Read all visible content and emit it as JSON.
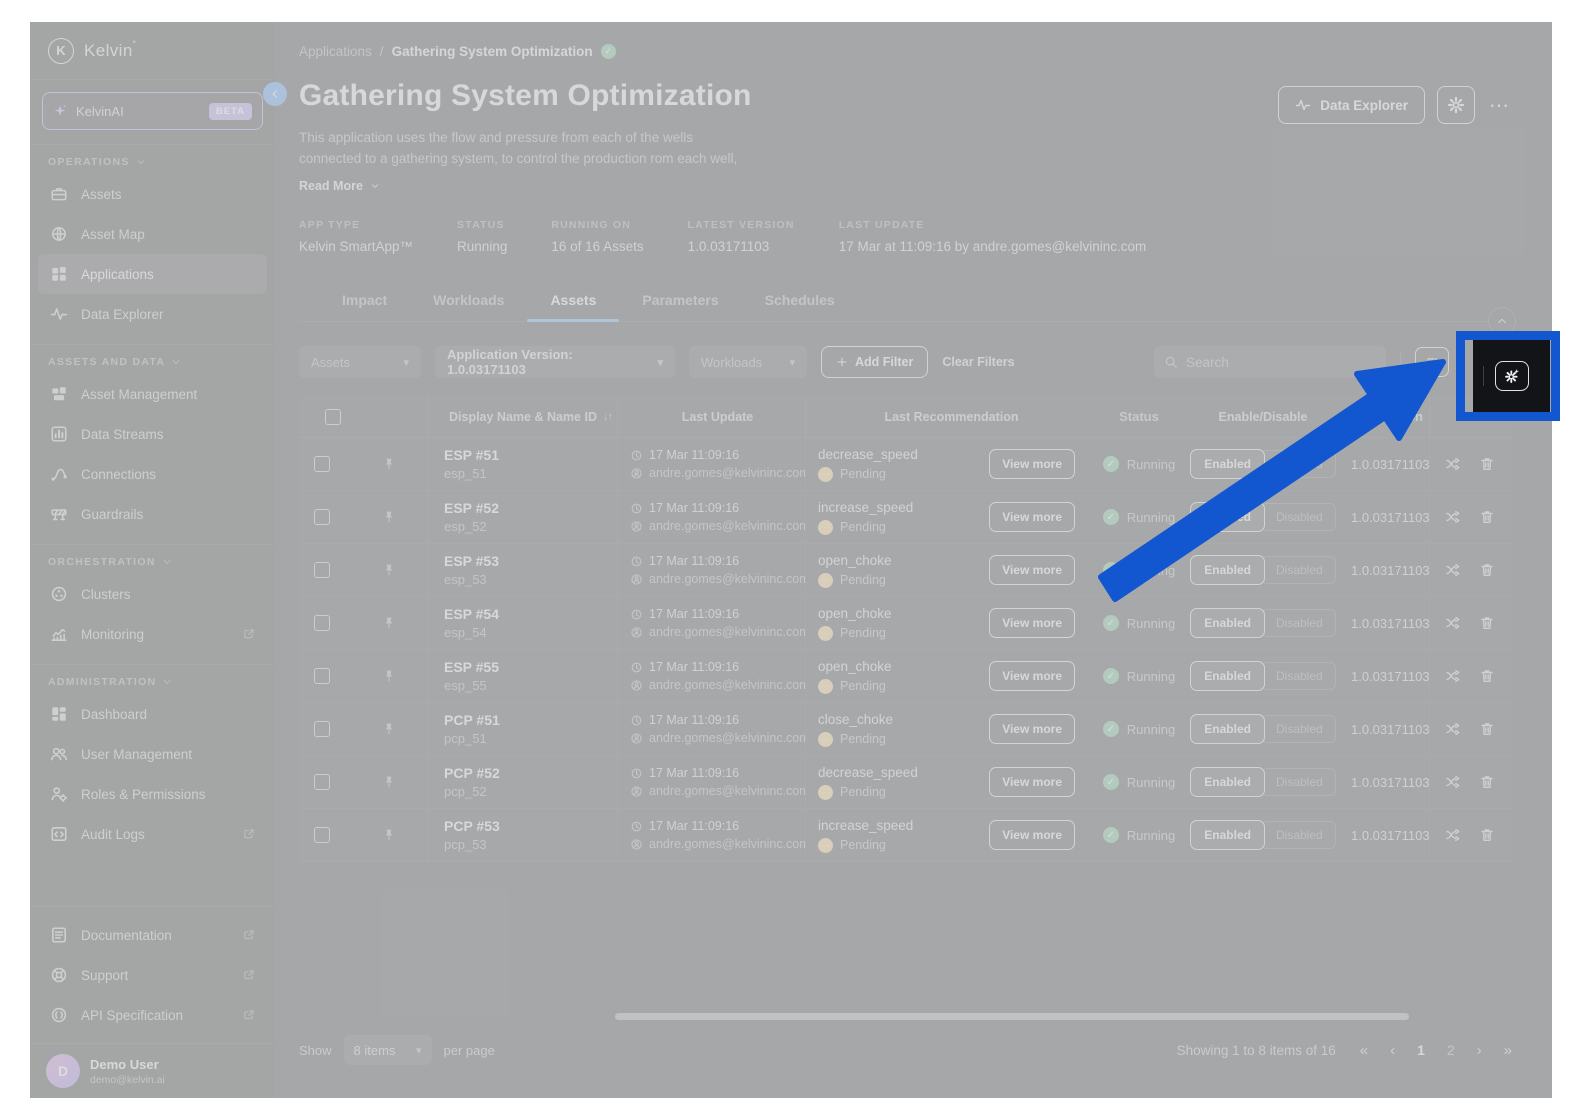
{
  "sidebar": {
    "logo_text": "Kelvin",
    "ai_item": {
      "label": "KelvinAI",
      "badge": "BETA"
    },
    "sections": [
      {
        "label": "OPERATIONS",
        "items": [
          {
            "icon": "briefcase",
            "label": "Assets"
          },
          {
            "icon": "globe",
            "label": "Asset Map"
          },
          {
            "icon": "applications",
            "label": "Applications",
            "active": true
          },
          {
            "icon": "waveform",
            "label": "Data Explorer"
          }
        ]
      },
      {
        "label": "ASSETS AND DATA",
        "items": [
          {
            "icon": "asset-management",
            "label": "Asset Management"
          },
          {
            "icon": "data-streams",
            "label": "Data Streams"
          },
          {
            "icon": "connections",
            "label": "Connections"
          },
          {
            "icon": "guardrails",
            "label": "Guardrails"
          }
        ]
      },
      {
        "label": "ORCHESTRATION",
        "items": [
          {
            "icon": "clusters",
            "label": "Clusters"
          },
          {
            "icon": "monitoring",
            "label": "Monitoring",
            "external": true
          }
        ]
      },
      {
        "label": "ADMINISTRATION",
        "items": [
          {
            "icon": "dashboard",
            "label": "Dashboard"
          },
          {
            "icon": "users",
            "label": "User Management"
          },
          {
            "icon": "roles",
            "label": "Roles & Permissions"
          },
          {
            "icon": "audit",
            "label": "Audit Logs",
            "external": true
          }
        ]
      }
    ],
    "footer_items": [
      {
        "icon": "document",
        "label": "Documentation",
        "external": true
      },
      {
        "icon": "support",
        "label": "Support",
        "external": true
      },
      {
        "icon": "api",
        "label": "API Specification",
        "external": true
      }
    ],
    "user": {
      "initial": "D",
      "name": "Demo User",
      "email": "demo@kelvin.ai"
    }
  },
  "header": {
    "breadcrumb_parent": "Applications",
    "breadcrumb_separator": "/",
    "breadcrumb_current": "Gathering System Optimization",
    "title": "Gathering System Optimization",
    "description": [
      "This application uses the flow and pressure from each of the wells",
      "connected to a gathering system, to control the production rom each well,"
    ],
    "read_more": "Read More",
    "data_explorer_label": "Data Explorer",
    "meta": [
      {
        "label": "APP TYPE",
        "value": "Kelvin SmartApp™"
      },
      {
        "label": "STATUS",
        "value": "Running"
      },
      {
        "label": "RUNNING ON",
        "value": "16 of 16 Assets"
      },
      {
        "label": "LATEST VERSION",
        "value": "1.0.03171103"
      },
      {
        "label": "LAST UPDATE",
        "value": "17 Mar at 11:09:16 by andre.gomes@kelvininc.com"
      }
    ]
  },
  "tabs": [
    {
      "label": "Impact"
    },
    {
      "label": "Workloads"
    },
    {
      "label": "Assets",
      "active": true
    },
    {
      "label": "Parameters"
    },
    {
      "label": "Schedules"
    }
  ],
  "filters": {
    "assets_dropdown": "Assets",
    "version_dropdown": "Application Version: 1.0.03171103",
    "workloads_dropdown": "Workloads",
    "add_filter": "Add Filter",
    "clear_filters": "Clear Filters",
    "search_placeholder": "Search"
  },
  "table": {
    "columns": [
      "Display Name & Name ID",
      "Last Update",
      "Last Recommendation",
      "Status",
      "Enable/Disable",
      "Version"
    ],
    "view_more_label": "View more",
    "enabled_label": "Enabled",
    "disabled_label": "Disabled",
    "rows": [
      {
        "display_name": "ESP #51",
        "name_id": "esp_51",
        "last_update_time": "17 Mar 11:09:16",
        "last_update_user": "andre.gomes@kelvininc.com",
        "recommendation": "decrease_speed",
        "recommendation_status": "Pending",
        "status": "Running",
        "version": "1.0.03171103"
      },
      {
        "display_name": "ESP #52",
        "name_id": "esp_52",
        "last_update_time": "17 Mar 11:09:16",
        "last_update_user": "andre.gomes@kelvininc.com",
        "recommendation": "increase_speed",
        "recommendation_status": "Pending",
        "status": "Running",
        "version": "1.0.03171103"
      },
      {
        "display_name": "ESP #53",
        "name_id": "esp_53",
        "last_update_time": "17 Mar 11:09:16",
        "last_update_user": "andre.gomes@kelvininc.com",
        "recommendation": "open_choke",
        "recommendation_status": "Pending",
        "status": "Running",
        "version": "1.0.03171103"
      },
      {
        "display_name": "ESP #54",
        "name_id": "esp_54",
        "last_update_time": "17 Mar 11:09:16",
        "last_update_user": "andre.gomes@kelvininc.com",
        "recommendation": "open_choke",
        "recommendation_status": "Pending",
        "status": "Running",
        "version": "1.0.03171103"
      },
      {
        "display_name": "ESP #55",
        "name_id": "esp_55",
        "last_update_time": "17 Mar 11:09:16",
        "last_update_user": "andre.gomes@kelvininc.com",
        "recommendation": "open_choke",
        "recommendation_status": "Pending",
        "status": "Running",
        "version": "1.0.03171103"
      },
      {
        "display_name": "PCP #51",
        "name_id": "pcp_51",
        "last_update_time": "17 Mar 11:09:16",
        "last_update_user": "andre.gomes@kelvininc.com",
        "recommendation": "close_choke",
        "recommendation_status": "Pending",
        "status": "Running",
        "version": "1.0.03171103"
      },
      {
        "display_name": "PCP #52",
        "name_id": "pcp_52",
        "last_update_time": "17 Mar 11:09:16",
        "last_update_user": "andre.gomes@kelvininc.com",
        "recommendation": "decrease_speed",
        "recommendation_status": "Pending",
        "status": "Running",
        "version": "1.0.03171103"
      },
      {
        "display_name": "PCP #53",
        "name_id": "pcp_53",
        "last_update_time": "17 Mar 11:09:16",
        "last_update_user": "andre.gomes@kelvininc.com",
        "recommendation": "increase_speed",
        "recommendation_status": "Pending",
        "status": "Running",
        "version": "1.0.03171103"
      }
    ]
  },
  "footer": {
    "show_label": "Show",
    "page_size": "8 items",
    "per_page_label": "per page",
    "showing_text": "Showing 1 to 8 items of 16",
    "pages": [
      "1",
      "2"
    ],
    "current_page": "1"
  },
  "colors": {
    "accent_blue": "#4a9fe8",
    "annotation_blue": "#1256d0",
    "running_green": "#57b584",
    "pending_yellow": "#e9c276",
    "kelvinai_purple": "#a78ff0"
  }
}
